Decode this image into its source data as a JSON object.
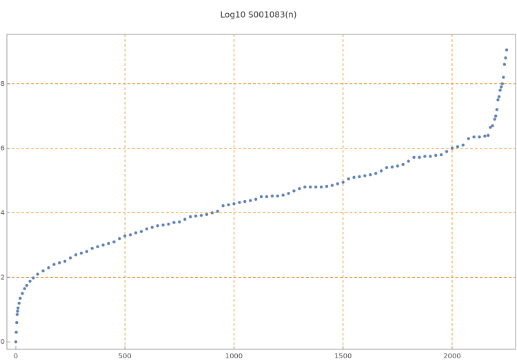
{
  "chart_data": {
    "type": "scatter",
    "title": "Log10 S001083(n)",
    "series": [
      {
        "color": "#5e81b5",
        "x": [
          0,
          2,
          4,
          6,
          8,
          10,
          15,
          20,
          30,
          40,
          50,
          65,
          80,
          100,
          125,
          150,
          175,
          200,
          225,
          250,
          275,
          300,
          325,
          350,
          375,
          400,
          425,
          450,
          475,
          500,
          525,
          550,
          575,
          600,
          625,
          650,
          675,
          700,
          725,
          750,
          775,
          800,
          825,
          850,
          875,
          900,
          925,
          950,
          975,
          1000,
          1025,
          1050,
          1075,
          1100,
          1125,
          1150,
          1175,
          1200,
          1225,
          1250,
          1275,
          1300,
          1325,
          1350,
          1375,
          1400,
          1425,
          1450,
          1475,
          1500,
          1525,
          1550,
          1575,
          1600,
          1625,
          1650,
          1675,
          1700,
          1725,
          1750,
          1775,
          1800,
          1825,
          1850,
          1875,
          1900,
          1925,
          1950,
          1975,
          2000,
          2025,
          2050,
          2075,
          2100,
          2125,
          2150,
          2165,
          2175,
          2185,
          2195,
          2200,
          2205,
          2210,
          2215,
          2220,
          2225,
          2230,
          2235,
          2240,
          2245,
          2250
        ],
        "values": [
          0,
          0.3,
          0.6,
          0.85,
          0.95,
          1.05,
          1.2,
          1.35,
          1.5,
          1.65,
          1.75,
          1.88,
          1.98,
          2.1,
          2.2,
          2.3,
          2.4,
          2.45,
          2.5,
          2.6,
          2.7,
          2.75,
          2.8,
          2.9,
          2.95,
          3.0,
          3.05,
          3.1,
          3.2,
          3.28,
          3.32,
          3.38,
          3.42,
          3.5,
          3.55,
          3.6,
          3.62,
          3.65,
          3.7,
          3.72,
          3.8,
          3.88,
          3.9,
          3.92,
          3.95,
          4.0,
          4.05,
          4.22,
          4.25,
          4.28,
          4.32,
          4.35,
          4.38,
          4.42,
          4.5,
          4.5,
          4.52,
          4.52,
          4.55,
          4.6,
          4.68,
          4.75,
          4.8,
          4.8,
          4.8,
          4.8,
          4.82,
          4.85,
          4.9,
          4.95,
          5.05,
          5.1,
          5.12,
          5.15,
          5.18,
          5.22,
          5.3,
          5.4,
          5.42,
          5.45,
          5.5,
          5.6,
          5.72,
          5.72,
          5.75,
          5.75,
          5.78,
          5.8,
          5.9,
          6.0,
          6.05,
          6.1,
          6.3,
          6.35,
          6.35,
          6.38,
          6.4,
          6.65,
          6.7,
          6.9,
          7.0,
          7.2,
          7.5,
          7.6,
          7.8,
          7.9,
          8.0,
          8.2,
          8.6,
          8.8,
          9.05
        ]
      }
    ],
    "xlim": [
      -41,
      2291
    ],
    "ylim": [
      -0.23,
      9.53
    ],
    "xticks": [
      0,
      500,
      1000,
      1500,
      2000
    ],
    "yticks": [
      0,
      2,
      4,
      6,
      8
    ],
    "xgrid": [
      500,
      1000,
      1500,
      2000
    ],
    "ygrid": [
      2,
      4,
      6,
      8
    ],
    "grid_color": "#e8922a"
  }
}
